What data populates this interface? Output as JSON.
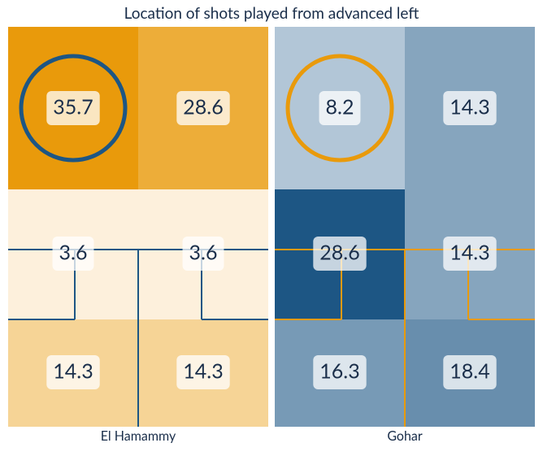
{
  "chart_data": {
    "type": "heatmap",
    "title": "Location of shots played from advanced left",
    "panels": [
      {
        "name": "El Hamammy",
        "values": [
          [
            35.7,
            28.6
          ],
          [
            3.6,
            3.6
          ],
          [
            14.3,
            14.3
          ]
        ],
        "colors": [
          "#fffaf3",
          "#e99a0b"
        ],
        "accent": "#1d5684"
      },
      {
        "name": "Gohar",
        "values": [
          [
            8.2,
            14.3
          ],
          [
            28.6,
            14.3
          ],
          [
            16.3,
            18.4
          ]
        ],
        "colors": [
          "#eef3f8",
          "#1d5684"
        ],
        "accent": "#e99a0b"
      }
    ]
  }
}
